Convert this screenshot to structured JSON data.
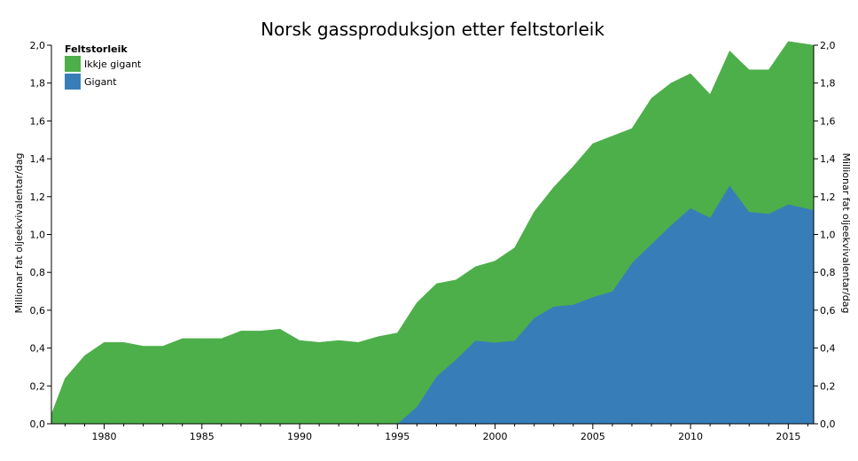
{
  "chart_data": {
    "type": "area",
    "stacked": true,
    "title": "Norsk gassproduksjon etter feltstorleik",
    "ylabel_left": "Millionar fat oljeekvivalentar/dag",
    "ylabel_right": "Millionar fat oljeekvivalentar/dag",
    "xlim": [
      1977.3,
      2016.3
    ],
    "ylim": [
      0,
      2.0
    ],
    "x_ticks": [
      1980,
      1985,
      1990,
      1995,
      2000,
      2005,
      2010,
      2015
    ],
    "y_ticks": [
      "0,0",
      "0,2",
      "0,4",
      "0,6",
      "0,8",
      "1,0",
      "1,2",
      "1,4",
      "1,6",
      "1,8",
      "2,0"
    ],
    "y_tick_values": [
      0,
      0.2,
      0.4,
      0.6,
      0.8,
      1.0,
      1.2,
      1.4,
      1.6,
      1.8,
      2.0
    ],
    "grid": false,
    "legend": {
      "title": "Feltstorleik",
      "position": "top-left",
      "entries": [
        "Ikkje gigant",
        "Gigant"
      ]
    },
    "x": [
      1977.3,
      1978,
      1979,
      1980,
      1981,
      1982,
      1983,
      1984,
      1985,
      1986,
      1987,
      1988,
      1989,
      1990,
      1991,
      1992,
      1993,
      1994,
      1995,
      1996,
      1997,
      1998,
      1999,
      2000,
      2001,
      2002,
      2003,
      2004,
      2005,
      2006,
      2007,
      2008,
      2009,
      2010,
      2011,
      2012,
      2013,
      2014,
      2015,
      2016.3
    ],
    "series": [
      {
        "name": "Gigant",
        "color": "#377eb8",
        "values": [
          0,
          0,
          0,
          0,
          0,
          0,
          0,
          0,
          0,
          0,
          0,
          0,
          0,
          0,
          0,
          0,
          0,
          0,
          0,
          0.09,
          0.25,
          0.34,
          0.44,
          0.43,
          0.44,
          0.56,
          0.62,
          0.63,
          0.67,
          0.7,
          0.85,
          0.95,
          1.05,
          1.14,
          1.09,
          1.26,
          1.12,
          1.11,
          1.16,
          1.13
        ]
      },
      {
        "name": "Ikkje gigant",
        "color": "#4daf4a",
        "values": [
          0.05,
          0.24,
          0.36,
          0.43,
          0.43,
          0.41,
          0.41,
          0.45,
          0.45,
          0.45,
          0.49,
          0.49,
          0.5,
          0.44,
          0.43,
          0.44,
          0.43,
          0.46,
          0.48,
          0.55,
          0.49,
          0.42,
          0.39,
          0.43,
          0.49,
          0.56,
          0.63,
          0.73,
          0.81,
          0.82,
          0.71,
          0.77,
          0.75,
          0.71,
          0.65,
          0.71,
          0.75,
          0.76,
          0.86,
          0.87
        ]
      }
    ]
  }
}
